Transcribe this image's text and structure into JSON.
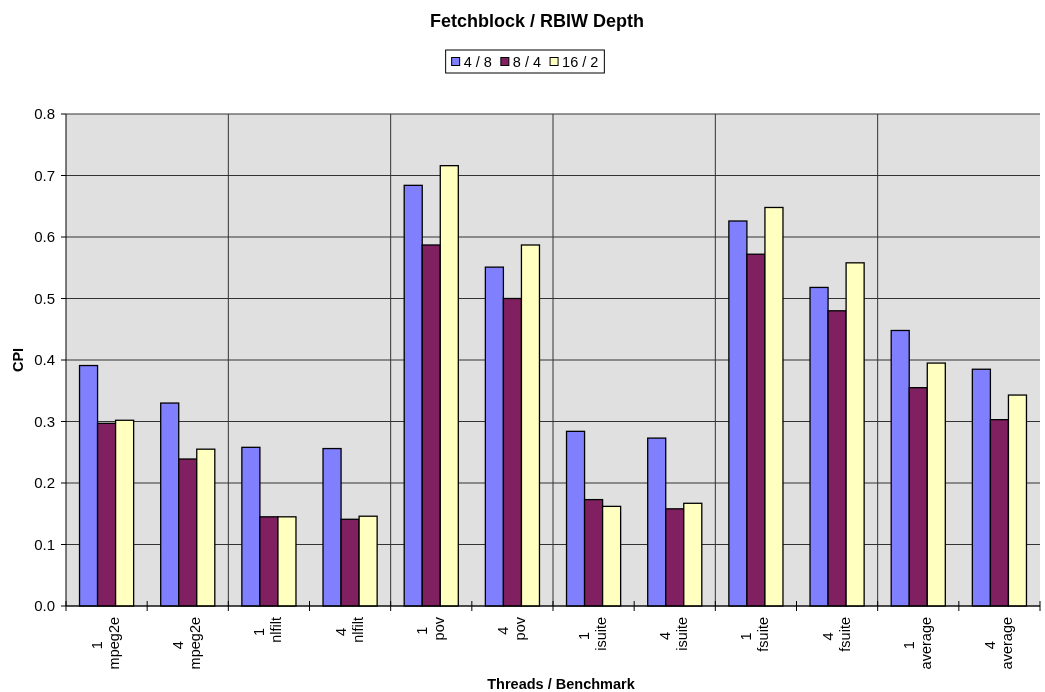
{
  "chart_data": {
    "type": "bar",
    "title": "Fetchblock / RBIW Depth",
    "xlabel": "Threads / Benchmark",
    "ylabel": "CPI",
    "categories": [
      "1 mpeg2e",
      "4 mpeg2e",
      "1 nlfilt",
      "4 nlfilt",
      "1 pov",
      "4 pov",
      "1 isuite",
      "4 isuite",
      "1 fsuite",
      "4 fsuite",
      "1 average",
      "4 average"
    ],
    "series": [
      {
        "name": "4 / 8",
        "color": "#8080ff",
        "values": [
          0.391,
          0.33,
          0.258,
          0.256,
          0.684,
          0.551,
          0.284,
          0.273,
          0.626,
          0.518,
          0.448,
          0.385
        ]
      },
      {
        "name": "8 / 4",
        "color": "#802060",
        "values": [
          0.297,
          0.239,
          0.145,
          0.141,
          0.587,
          0.5,
          0.173,
          0.158,
          0.572,
          0.48,
          0.355,
          0.303
        ]
      },
      {
        "name": "16 / 2",
        "color": "#ffffc0",
        "values": [
          0.302,
          0.255,
          0.145,
          0.146,
          0.716,
          0.587,
          0.162,
          0.167,
          0.648,
          0.558,
          0.395,
          0.343
        ]
      }
    ],
    "ylim": [
      0,
      0.8
    ],
    "yticks": [
      {
        "value": 0,
        "label": "0.0"
      },
      0.1,
      0.2,
      0.3,
      0.4,
      0.5,
      0.6,
      0.7,
      0.8
    ],
    "grid": true,
    "legend": "top"
  }
}
